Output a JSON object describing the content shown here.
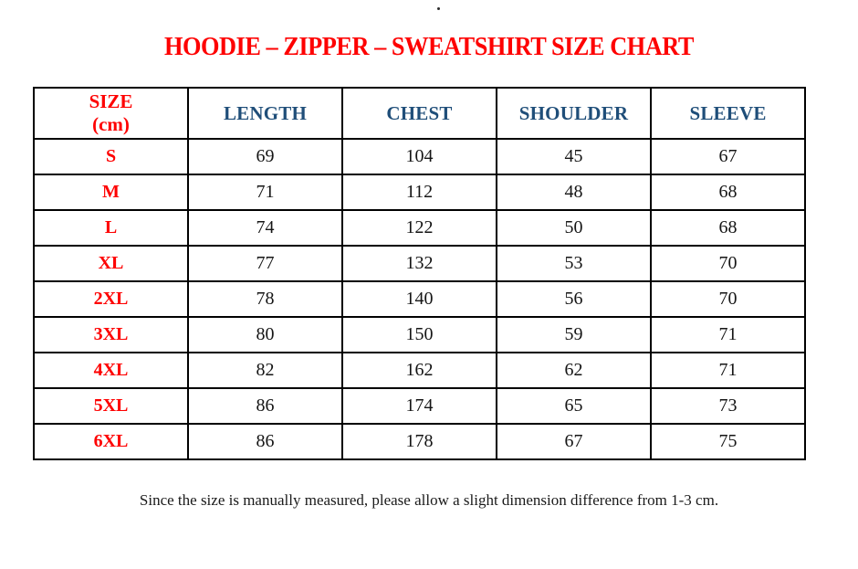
{
  "page": {
    "stray_dot": "",
    "title": "HOODIE – ZIPPER – SWEATSHIRT SIZE CHART",
    "footnote": "Since the size is manually measured, please allow a slight dimension difference from 1-3 cm."
  },
  "colors": {
    "title_red": "#fe0000",
    "size_label_red": "#fe0000",
    "header_blue": "#1f4e79",
    "value_text": "#151515",
    "border": "#000000",
    "background": "#ffffff"
  },
  "table": {
    "header": {
      "size_line1": "SIZE",
      "size_line2": "(cm)",
      "col_length": "LENGTH",
      "col_chest": "CHEST",
      "col_shoulder": "SHOULDER",
      "col_sleeve": "SLEEVE"
    },
    "rows": [
      {
        "size": "S",
        "length": "69",
        "chest": "104",
        "shoulder": "45",
        "sleeve": "67"
      },
      {
        "size": "M",
        "length": "71",
        "chest": "112",
        "shoulder": "48",
        "sleeve": "68"
      },
      {
        "size": "L",
        "length": "74",
        "chest": "122",
        "shoulder": "50",
        "sleeve": "68"
      },
      {
        "size": "XL",
        "length": "77",
        "chest": "132",
        "shoulder": "53",
        "sleeve": "70"
      },
      {
        "size": "2XL",
        "length": "78",
        "chest": "140",
        "shoulder": "56",
        "sleeve": "70"
      },
      {
        "size": "3XL",
        "length": "80",
        "chest": "150",
        "shoulder": "59",
        "sleeve": "71"
      },
      {
        "size": "4XL",
        "length": "82",
        "chest": "162",
        "shoulder": "62",
        "sleeve": "71"
      },
      {
        "size": "5XL",
        "length": "86",
        "chest": "174",
        "shoulder": "65",
        "sleeve": "73"
      },
      {
        "size": "6XL",
        "length": "86",
        "chest": "178",
        "shoulder": "67",
        "sleeve": "75"
      }
    ]
  },
  "chart_data": {
    "type": "table",
    "title": "HOODIE – ZIPPER – SWEATSHIRT SIZE CHART",
    "columns": [
      "SIZE (cm)",
      "LENGTH",
      "CHEST",
      "SHOULDER",
      "SLEEVE"
    ],
    "rows": [
      [
        "S",
        69,
        104,
        45,
        67
      ],
      [
        "M",
        71,
        112,
        48,
        68
      ],
      [
        "L",
        74,
        122,
        50,
        68
      ],
      [
        "XL",
        77,
        132,
        53,
        70
      ],
      [
        "2XL",
        78,
        140,
        56,
        70
      ],
      [
        "3XL",
        80,
        150,
        59,
        71
      ],
      [
        "4XL",
        82,
        162,
        62,
        71
      ],
      [
        "5XL",
        86,
        174,
        65,
        73
      ],
      [
        "6XL",
        86,
        178,
        67,
        75
      ]
    ],
    "note": "Since the size is manually measured, please allow a slight dimension difference from 1-3 cm."
  }
}
